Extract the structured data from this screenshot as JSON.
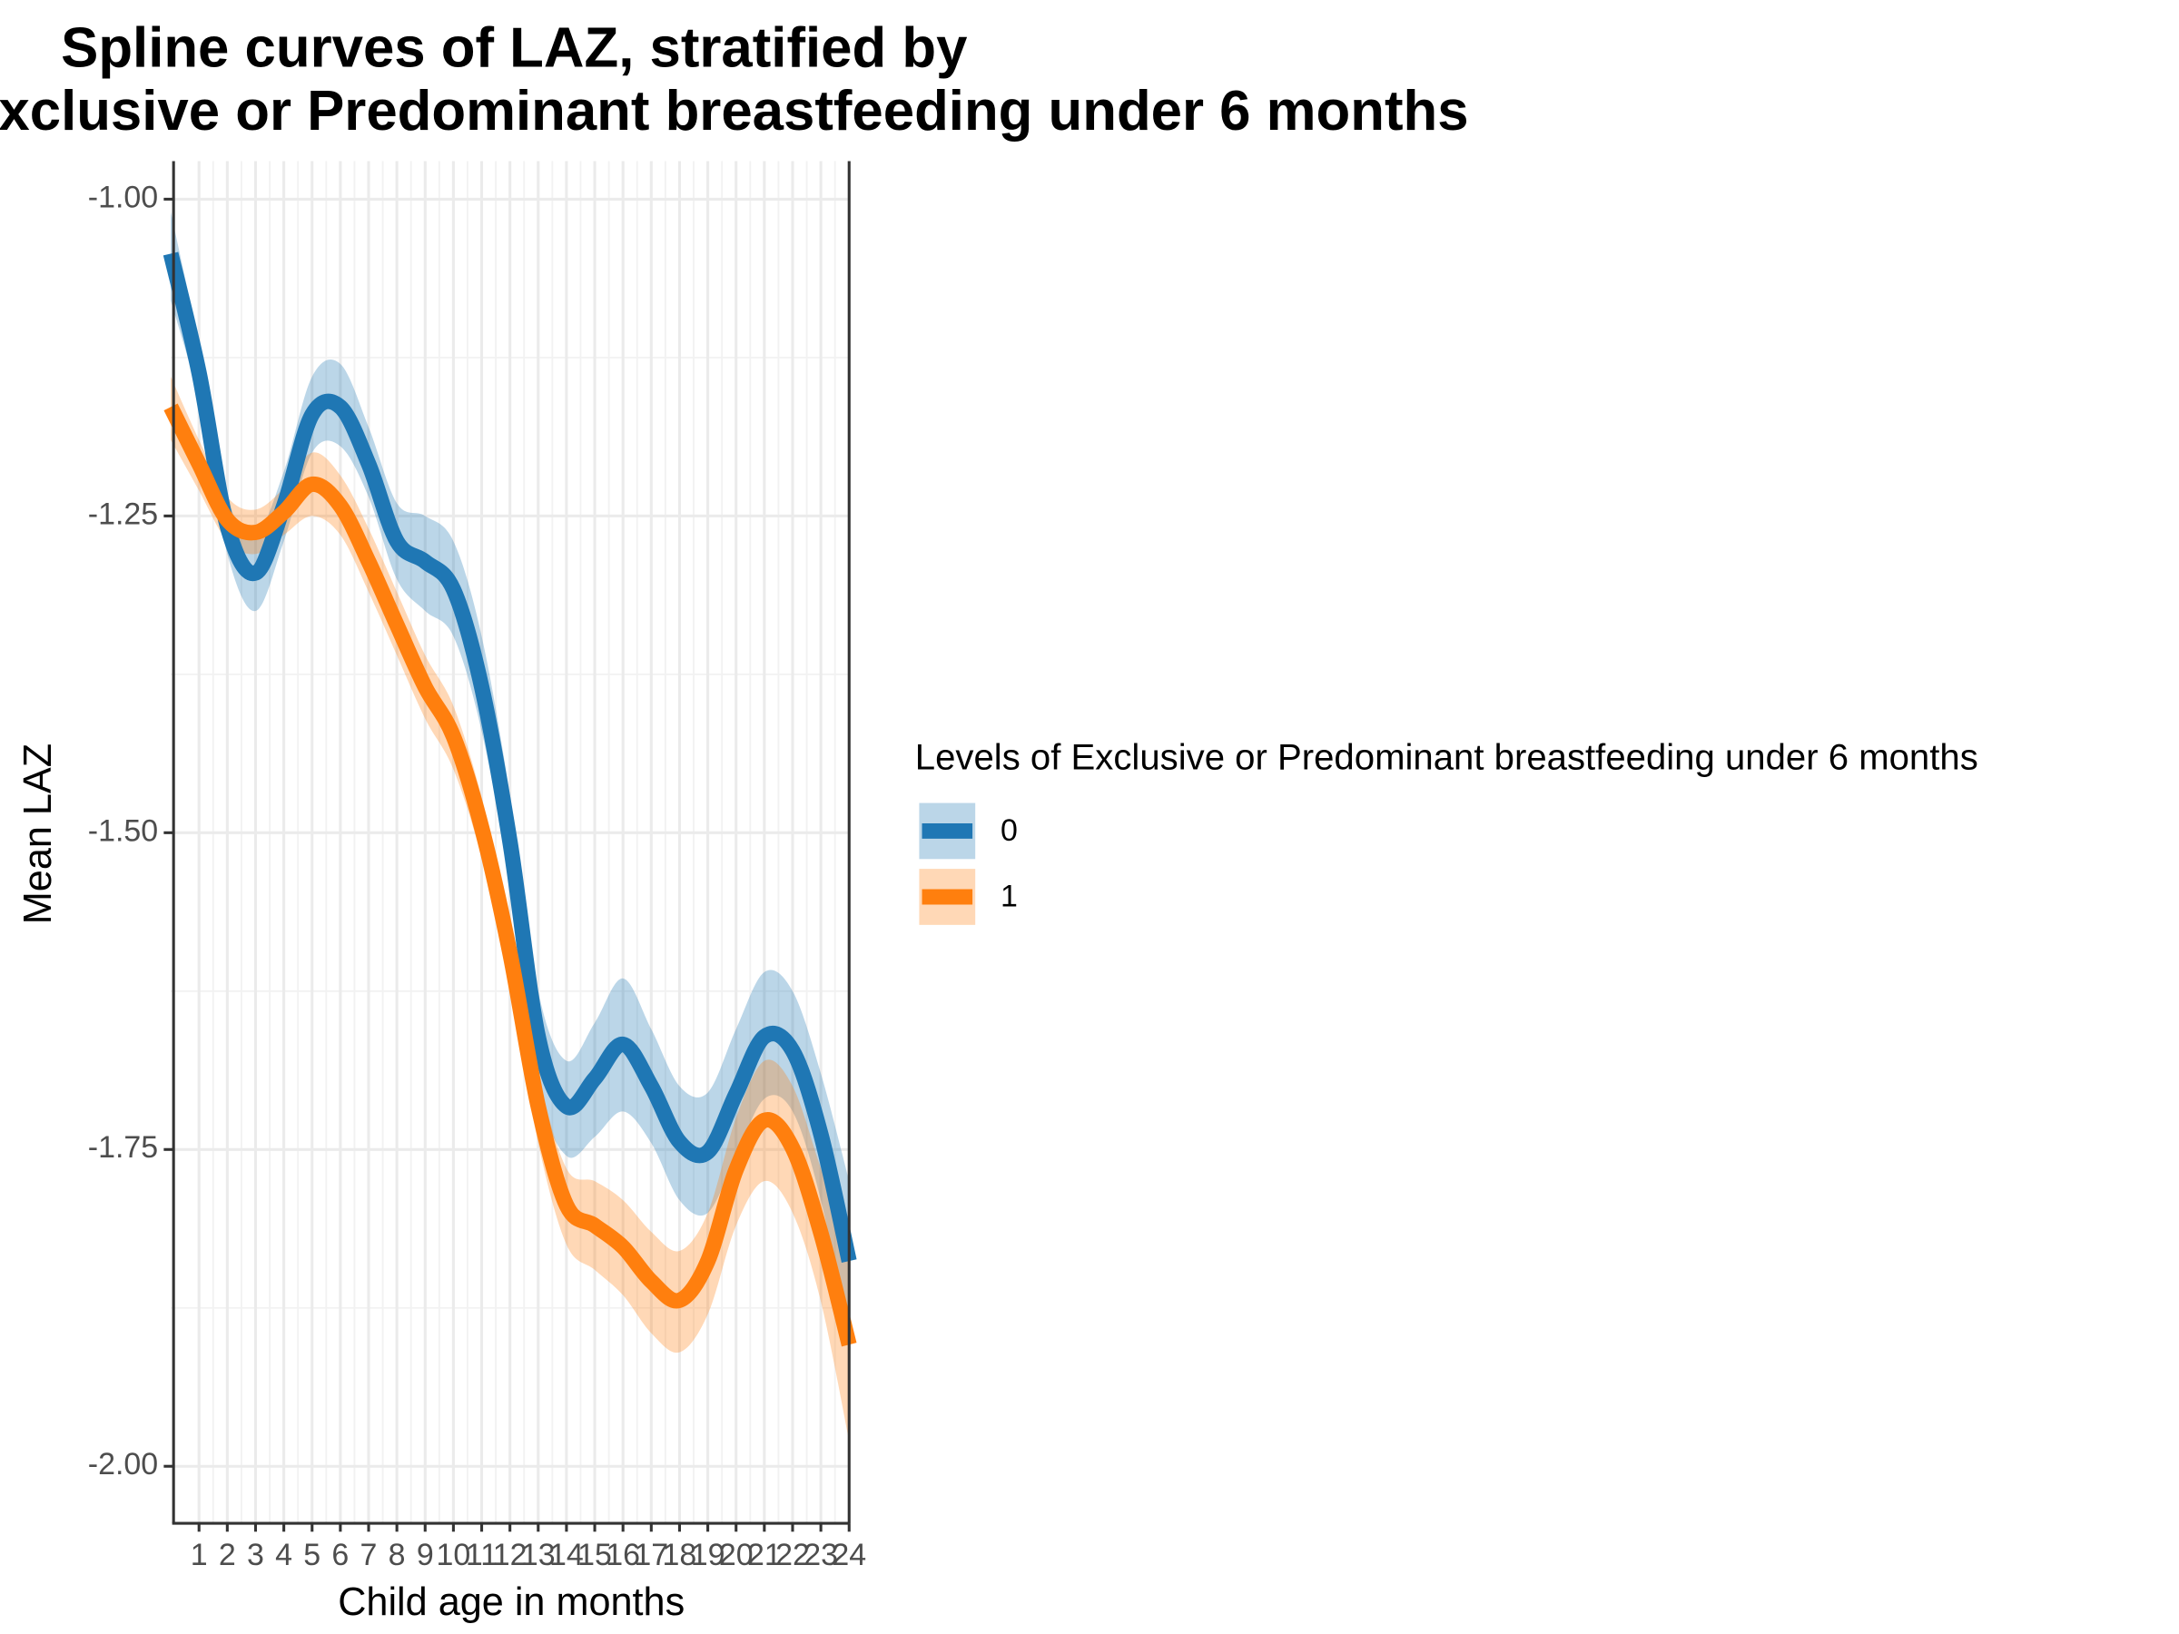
{
  "chart_data": {
    "type": "line",
    "title": [
      "Spline curves of LAZ, stratified by",
      "Exclusive or Predominant breastfeeding under 6 months"
    ],
    "xlabel": "Child age in months",
    "ylabel": "Mean LAZ",
    "legend_title": "Levels of Exclusive or Predominant breastfeeding under 6 months",
    "legend_position": "right",
    "grid": true,
    "x": [
      0,
      1,
      2,
      3,
      4,
      5,
      6,
      7,
      8,
      9,
      10,
      11,
      12,
      13,
      14,
      15,
      16,
      17,
      18,
      19,
      20,
      21,
      22,
      23,
      24
    ],
    "xlim": [
      0,
      24
    ],
    "xticks": [
      1,
      2,
      3,
      4,
      5,
      6,
      7,
      8,
      9,
      10,
      11,
      12,
      13,
      14,
      15,
      16,
      17,
      18,
      19,
      20,
      21,
      22,
      23,
      24
    ],
    "ylim": [
      -2.045,
      -0.97
    ],
    "yticks": [
      {
        "value": -2,
        "label": "-2.00"
      },
      {
        "value": -1.75,
        "label": "-1.75"
      },
      {
        "value": -1.5,
        "label": "-1.50"
      },
      {
        "value": -1.25,
        "label": "-1.25"
      },
      {
        "value": -1,
        "label": "-1.00"
      }
    ],
    "series": [
      {
        "name": "0",
        "color": "#1f77b4",
        "values": [
          -1.043,
          -1.137,
          -1.258,
          -1.295,
          -1.242,
          -1.17,
          -1.164,
          -1.209,
          -1.27,
          -1.286,
          -1.308,
          -1.385,
          -1.507,
          -1.661,
          -1.716,
          -1.694,
          -1.667,
          -1.7,
          -1.744,
          -1.752,
          -1.706,
          -1.661,
          -1.672,
          -1.738,
          -1.838
        ],
        "lower": [
          -1.08,
          -1.16,
          -1.28,
          -1.325,
          -1.27,
          -1.2,
          -1.195,
          -1.235,
          -1.3,
          -1.325,
          -1.345,
          -1.42,
          -1.54,
          -1.7,
          -1.755,
          -1.74,
          -1.72,
          -1.745,
          -1.79,
          -1.8,
          -1.755,
          -1.71,
          -1.72,
          -1.79,
          -1.9
        ],
        "upper": [
          -1.01,
          -1.115,
          -1.235,
          -1.265,
          -1.215,
          -1.14,
          -1.13,
          -1.18,
          -1.24,
          -1.25,
          -1.27,
          -1.345,
          -1.47,
          -1.625,
          -1.68,
          -1.65,
          -1.615,
          -1.655,
          -1.7,
          -1.705,
          -1.655,
          -1.61,
          -1.625,
          -1.69,
          -1.775
        ]
      },
      {
        "name": "1",
        "color": "#ff7f0e",
        "values": [
          -1.164,
          -1.209,
          -1.253,
          -1.263,
          -1.247,
          -1.225,
          -1.242,
          -1.286,
          -1.336,
          -1.385,
          -1.424,
          -1.496,
          -1.595,
          -1.716,
          -1.794,
          -1.81,
          -1.827,
          -1.854,
          -1.869,
          -1.838,
          -1.766,
          -1.727,
          -1.749,
          -1.816,
          -1.904
        ],
        "lower": [
          -1.19,
          -1.23,
          -1.27,
          -1.28,
          -1.265,
          -1.25,
          -1.265,
          -1.31,
          -1.36,
          -1.41,
          -1.45,
          -1.52,
          -1.62,
          -1.745,
          -1.825,
          -1.845,
          -1.865,
          -1.895,
          -1.91,
          -1.88,
          -1.81,
          -1.775,
          -1.8,
          -1.87,
          -1.98
        ],
        "upper": [
          -1.14,
          -1.19,
          -1.235,
          -1.245,
          -1.228,
          -1.2,
          -1.218,
          -1.26,
          -1.31,
          -1.36,
          -1.4,
          -1.472,
          -1.57,
          -1.69,
          -1.765,
          -1.775,
          -1.79,
          -1.815,
          -1.83,
          -1.8,
          -1.725,
          -1.68,
          -1.7,
          -1.765,
          -1.83
        ]
      }
    ]
  }
}
